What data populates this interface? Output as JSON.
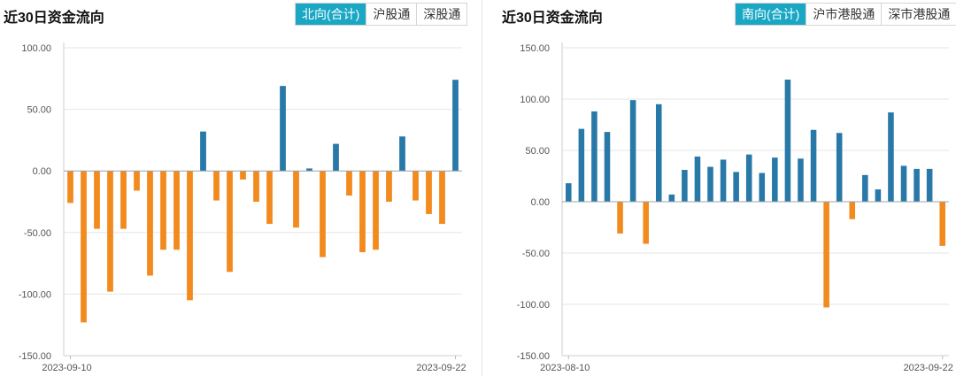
{
  "colors": {
    "positive": "#2878a8",
    "negative": "#f28a1e",
    "tab_active": "#19a7c4"
  },
  "north": {
    "title": "近30日资金流向",
    "tabs": [
      {
        "label": "北向(合计)",
        "active": true
      },
      {
        "label": "沪股通",
        "active": false
      },
      {
        "label": "深股通",
        "active": false
      }
    ]
  },
  "south": {
    "title": "近30日资金流向",
    "tabs": [
      {
        "label": "南向(合计)",
        "active": true
      },
      {
        "label": "沪市港股通",
        "active": false
      },
      {
        "label": "深市港股通",
        "active": false
      }
    ]
  },
  "chart_data": [
    {
      "type": "bar",
      "ylim": [
        -150,
        100
      ],
      "yticks": [
        "100.00",
        "50.00",
        "0.00",
        "-50.00",
        "-100.00",
        "-150.00"
      ],
      "ytick_values": [
        100,
        50,
        0,
        -50,
        -100,
        -150
      ],
      "x_start_label": "2023-09-10",
      "x_end_label": "2023-09-22",
      "values": [
        -26,
        -123,
        -47,
        -98,
        -47,
        -16,
        -85,
        -64,
        -64,
        -105,
        32,
        -24,
        -82,
        -7,
        -25,
        -43,
        69,
        -46,
        2,
        -70,
        22,
        -20,
        -66,
        -64,
        -25,
        28,
        -24,
        -35,
        -43,
        74
      ],
      "grid": true
    },
    {
      "type": "bar",
      "ylim": [
        -150,
        150
      ],
      "yticks": [
        "150.00",
        "100.00",
        "50.00",
        "0.00",
        "-50.00",
        "-100.00",
        "-150.00"
      ],
      "ytick_values": [
        150,
        100,
        50,
        0,
        -50,
        -100,
        -150
      ],
      "x_start_label": "2023-08-10",
      "x_end_label": "2023-09-22",
      "values": [
        18,
        71,
        88,
        68,
        -31,
        99,
        -41,
        95,
        7,
        31,
        44,
        34,
        41,
        29,
        46,
        28,
        43,
        119,
        42,
        70,
        -103,
        67,
        -17,
        26,
        12,
        87,
        35,
        32,
        32,
        -43
      ],
      "grid": true
    }
  ]
}
